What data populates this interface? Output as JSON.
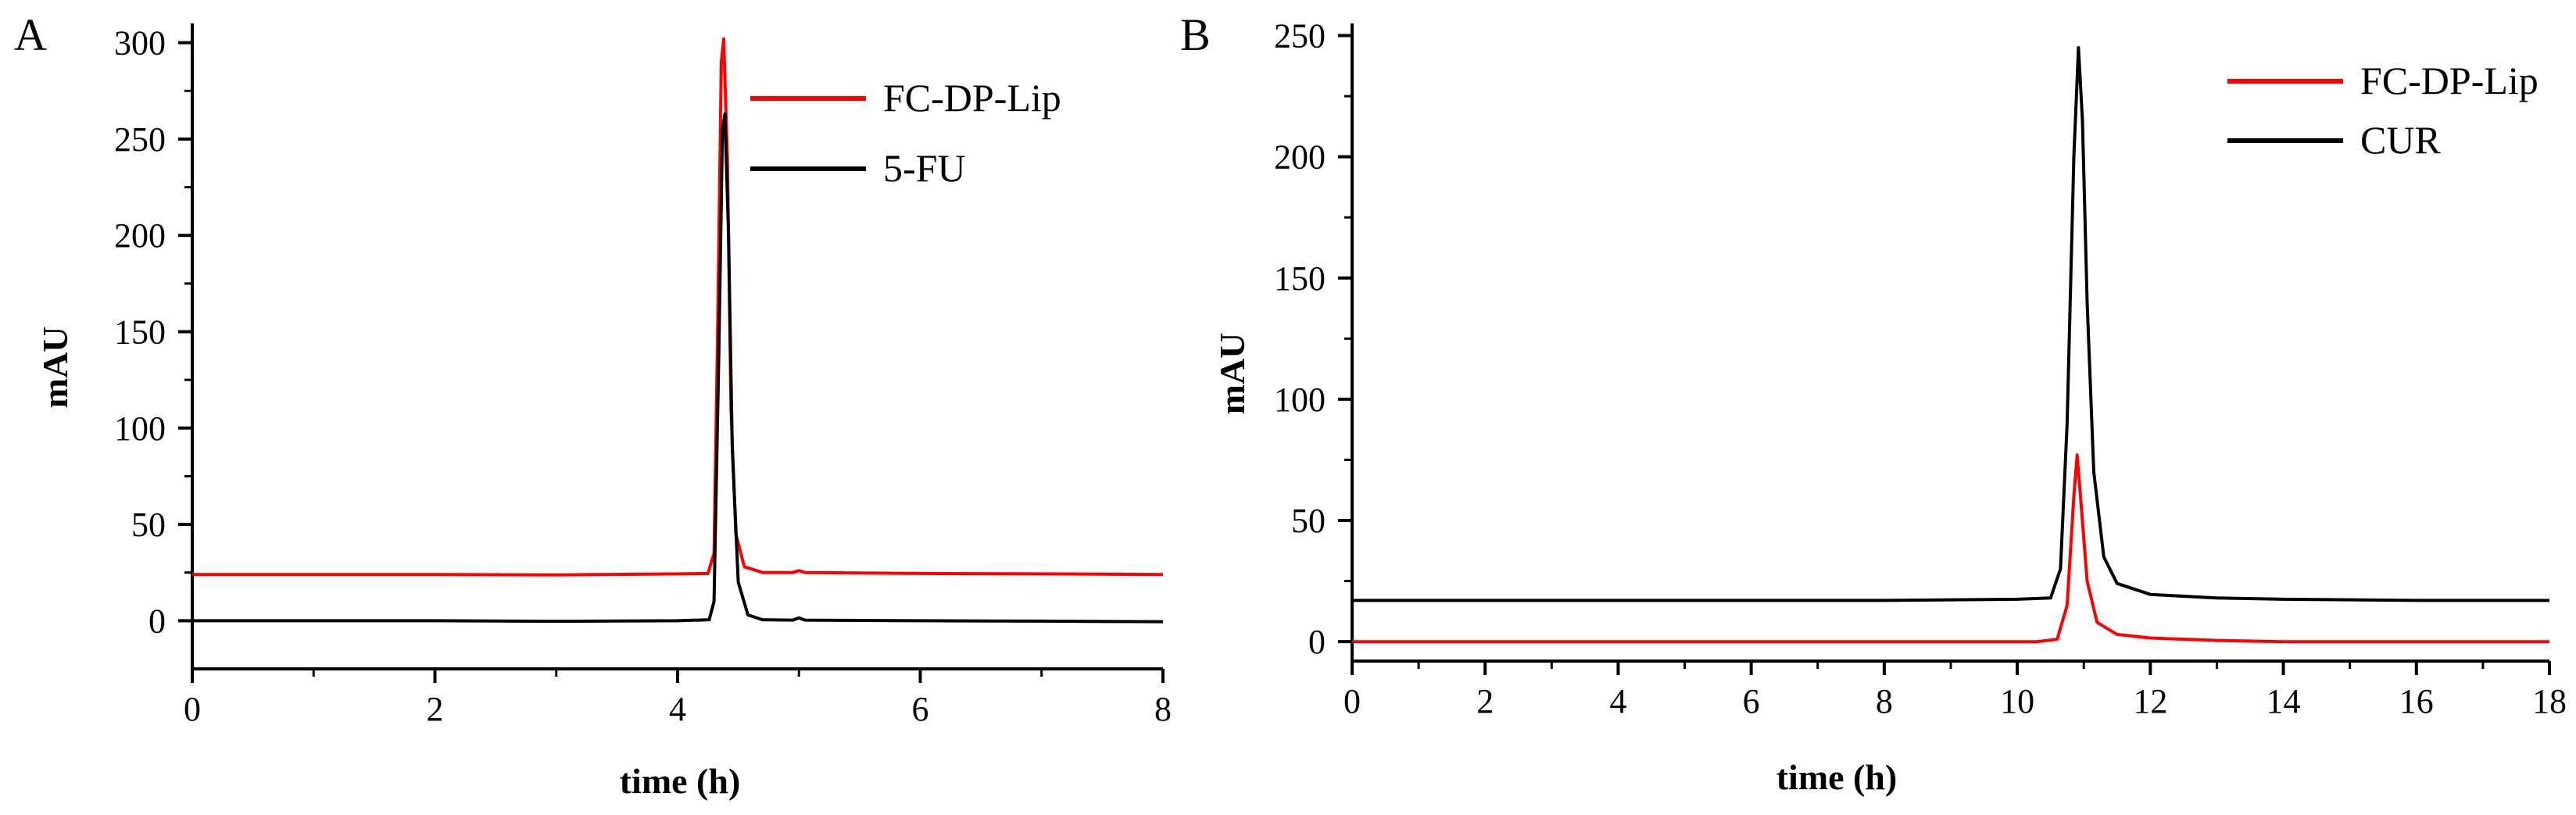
{
  "chart_data": [
    {
      "panel": "A",
      "type": "line",
      "xlabel": "time (h)",
      "ylabel": "mAU",
      "xlim": [
        0,
        8
      ],
      "ylim": [
        -25,
        310
      ],
      "xticks": [
        0,
        2,
        4,
        6,
        8
      ],
      "yticks": [
        0,
        50,
        100,
        150,
        200,
        250,
        300
      ],
      "grid": false,
      "legend_position": "top-right",
      "series": [
        {
          "name": "FC-DP-Lip",
          "color": "#ff0000",
          "points": [
            [
              0,
              24
            ],
            [
              1,
              24
            ],
            [
              2,
              24
            ],
            [
              3,
              23.8
            ],
            [
              3.8,
              24.2
            ],
            [
              4.25,
              24.5
            ],
            [
              4.3,
              35
            ],
            [
              4.33,
              150
            ],
            [
              4.36,
              290
            ],
            [
              4.38,
              302
            ],
            [
              4.41,
              240
            ],
            [
              4.44,
              110
            ],
            [
              4.48,
              45
            ],
            [
              4.55,
              28
            ],
            [
              4.7,
              25
            ],
            [
              4.95,
              25
            ],
            [
              5.0,
              26
            ],
            [
              5.05,
              25
            ],
            [
              6,
              24.5
            ],
            [
              7,
              24.3
            ],
            [
              8,
              24
            ]
          ]
        },
        {
          "name": "5-FU",
          "color": "#000000",
          "points": [
            [
              0,
              0
            ],
            [
              1,
              0
            ],
            [
              2,
              0
            ],
            [
              3,
              -0.3
            ],
            [
              4.0,
              0
            ],
            [
              4.26,
              0.5
            ],
            [
              4.3,
              10
            ],
            [
              4.34,
              140
            ],
            [
              4.37,
              255
            ],
            [
              4.39,
              263
            ],
            [
              4.42,
              200
            ],
            [
              4.45,
              90
            ],
            [
              4.5,
              20
            ],
            [
              4.58,
              3
            ],
            [
              4.7,
              0.5
            ],
            [
              4.95,
              0.3
            ],
            [
              5.0,
              1.5
            ],
            [
              5.05,
              0.3
            ],
            [
              6,
              0
            ],
            [
              7,
              -0.2
            ],
            [
              8,
              -0.5
            ]
          ]
        }
      ]
    },
    {
      "panel": "B",
      "type": "line",
      "xlabel": "time (h)",
      "ylabel": "mAU",
      "xlim": [
        0,
        18
      ],
      "ylim": [
        -8,
        255
      ],
      "xticks": [
        0,
        2,
        4,
        6,
        8,
        10,
        12,
        14,
        16,
        18
      ],
      "yticks": [
        0,
        50,
        100,
        150,
        200,
        250
      ],
      "grid": false,
      "legend_position": "top-right",
      "series": [
        {
          "name": "FC-DP-Lip",
          "color": "#ff0000",
          "points": [
            [
              0,
              0
            ],
            [
              4,
              0
            ],
            [
              8,
              0
            ],
            [
              10.3,
              0
            ],
            [
              10.6,
              1
            ],
            [
              10.75,
              15
            ],
            [
              10.85,
              60
            ],
            [
              10.9,
              77
            ],
            [
              10.95,
              60
            ],
            [
              11.05,
              25
            ],
            [
              11.2,
              8
            ],
            [
              11.5,
              3
            ],
            [
              12,
              1.5
            ],
            [
              13,
              0.5
            ],
            [
              14,
              0
            ],
            [
              16,
              0
            ],
            [
              18,
              0
            ]
          ]
        },
        {
          "name": "CUR",
          "color": "#000000",
          "points": [
            [
              0,
              17
            ],
            [
              2,
              17
            ],
            [
              4,
              17
            ],
            [
              6,
              17
            ],
            [
              8,
              17
            ],
            [
              10,
              17.5
            ],
            [
              10.5,
              18
            ],
            [
              10.65,
              30
            ],
            [
              10.75,
              90
            ],
            [
              10.85,
              200
            ],
            [
              10.92,
              245
            ],
            [
              10.98,
              215
            ],
            [
              11.05,
              140
            ],
            [
              11.15,
              70
            ],
            [
              11.3,
              35
            ],
            [
              11.5,
              24
            ],
            [
              12,
              19.5
            ],
            [
              13,
              18
            ],
            [
              14,
              17.5
            ],
            [
              16,
              17
            ],
            [
              18,
              17
            ]
          ]
        }
      ]
    }
  ]
}
